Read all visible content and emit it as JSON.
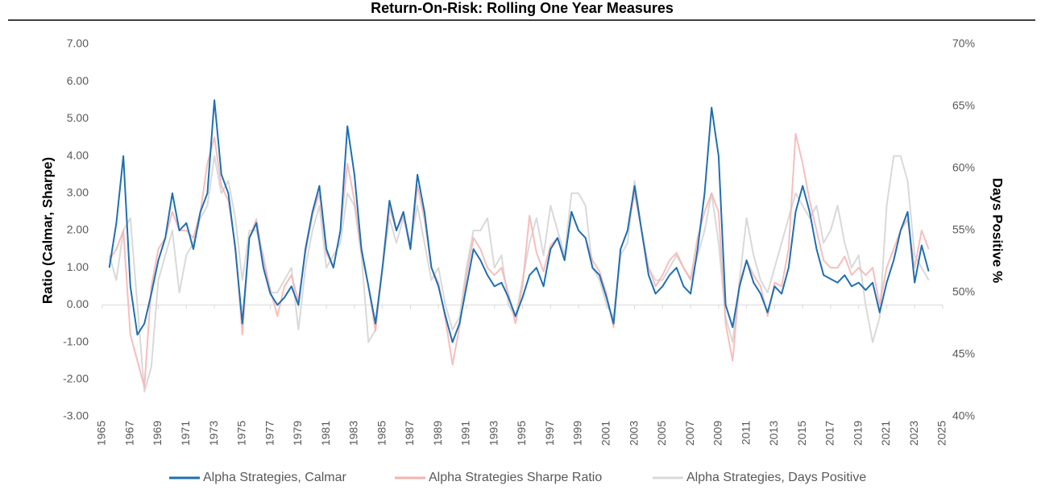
{
  "chart_data": {
    "type": "line",
    "title": "Return-On-Risk: Rolling One Year Measures",
    "y_label": "Ratio (Calmar, Sharpe)",
    "y2_label": "Days Positive %",
    "x": [
      1965.5,
      1966,
      1966.5,
      1967,
      1967.5,
      1968,
      1968.5,
      1969,
      1969.5,
      1970,
      1970.5,
      1971,
      1971.5,
      1972,
      1972.5,
      1973,
      1973.5,
      1974,
      1974.5,
      1975,
      1975.5,
      1976,
      1976.5,
      1977,
      1977.5,
      1978,
      1978.5,
      1979,
      1979.5,
      1980,
      1980.5,
      1981,
      1981.5,
      1982,
      1982.5,
      1983,
      1983.5,
      1984,
      1984.5,
      1985,
      1985.5,
      1986,
      1986.5,
      1987,
      1987.5,
      1988,
      1988.5,
      1989,
      1989.5,
      1990,
      1990.5,
      1991,
      1991.5,
      1992,
      1992.5,
      1993,
      1993.5,
      1994,
      1994.5,
      1995,
      1995.5,
      1996,
      1996.5,
      1997,
      1997.5,
      1998,
      1998.5,
      1999,
      1999.5,
      2000,
      2000.5,
      2001,
      2001.5,
      2002,
      2002.5,
      2003,
      2003.5,
      2004,
      2004.5,
      2005,
      2005.5,
      2006,
      2006.5,
      2007,
      2007.5,
      2008,
      2008.5,
      2009,
      2009.5,
      2010,
      2010.5,
      2011,
      2011.5,
      2012,
      2012.5,
      2013,
      2013.5,
      2014,
      2014.5,
      2015,
      2015.5,
      2016,
      2016.5,
      2017,
      2017.5,
      2018,
      2018.5,
      2019,
      2019.5,
      2020,
      2020.5,
      2021,
      2021.5,
      2022,
      2022.5,
      2023,
      2023.5,
      2024
    ],
    "series": [
      {
        "name": "Alpha Strategies, Calmar",
        "color": "#1f6fb2",
        "axis": "y",
        "values": [
          1.0,
          2.2,
          4.0,
          0.5,
          -0.8,
          -0.5,
          0.3,
          1.2,
          1.8,
          3.0,
          2.0,
          2.2,
          1.5,
          2.5,
          3.0,
          5.5,
          3.5,
          3.0,
          1.5,
          -0.5,
          1.8,
          2.2,
          1.0,
          0.3,
          0.0,
          0.2,
          0.5,
          0.0,
          1.5,
          2.5,
          3.2,
          1.5,
          1.0,
          2.0,
          4.8,
          3.5,
          1.5,
          0.5,
          -0.5,
          1.0,
          2.8,
          2.0,
          2.5,
          1.5,
          3.5,
          2.5,
          1.0,
          0.5,
          -0.3,
          -1.0,
          -0.5,
          0.5,
          1.5,
          1.2,
          0.8,
          0.5,
          0.6,
          0.2,
          -0.3,
          0.2,
          0.8,
          1.0,
          0.5,
          1.5,
          1.8,
          1.2,
          2.5,
          2.0,
          1.8,
          1.0,
          0.8,
          0.2,
          -0.5,
          1.5,
          2.0,
          3.2,
          2.0,
          0.8,
          0.3,
          0.5,
          0.8,
          1.0,
          0.5,
          0.3,
          1.5,
          3.0,
          5.3,
          4.0,
          0.0,
          -0.6,
          0.5,
          1.2,
          0.6,
          0.3,
          -0.2,
          0.5,
          0.3,
          1.0,
          2.5,
          3.2,
          2.5,
          1.5,
          0.8,
          0.7,
          0.6,
          0.8,
          0.5,
          0.6,
          0.4,
          0.6,
          -0.2,
          0.6,
          1.2,
          2.0,
          2.5,
          0.6,
          1.6,
          0.9
        ]
      },
      {
        "name": "Alpha Strategies Sharpe Ratio",
        "color": "#f4b3b1",
        "axis": "y",
        "values": [
          1.2,
          1.5,
          2.0,
          -0.8,
          -1.5,
          -2.2,
          0.5,
          1.5,
          1.8,
          2.5,
          2.0,
          2.0,
          1.8,
          2.5,
          3.8,
          4.5,
          3.2,
          2.8,
          1.6,
          -0.8,
          1.8,
          2.3,
          1.2,
          0.4,
          -0.3,
          0.5,
          0.8,
          0.1,
          1.4,
          2.4,
          3.0,
          1.4,
          1.0,
          2.0,
          3.8,
          2.8,
          1.4,
          0.5,
          -0.7,
          1.0,
          2.6,
          2.0,
          2.4,
          1.5,
          3.2,
          2.3,
          1.0,
          0.6,
          -0.4,
          -1.6,
          -0.6,
          0.8,
          1.8,
          1.5,
          1.0,
          0.8,
          1.0,
          0.3,
          -0.5,
          0.5,
          2.4,
          1.4,
          0.9,
          1.6,
          1.8,
          1.2,
          2.5,
          2.0,
          1.8,
          1.2,
          0.9,
          0.3,
          -0.6,
          1.5,
          2.0,
          3.0,
          2.0,
          1.0,
          0.5,
          0.8,
          1.2,
          1.4,
          1.0,
          0.7,
          1.8,
          2.5,
          3.0,
          2.5,
          -0.5,
          -1.5,
          0.6,
          1.2,
          0.8,
          0.5,
          -0.3,
          0.6,
          0.5,
          1.5,
          4.6,
          3.8,
          2.8,
          2.0,
          1.2,
          1.0,
          1.0,
          1.3,
          0.8,
          1.0,
          0.8,
          1.0,
          0.0,
          1.0,
          1.5,
          2.0,
          2.3,
          1.0,
          2.0,
          1.5
        ]
      },
      {
        "name": "Alpha Strategies, Days Positive",
        "color": "#d9d9d9",
        "axis": "y2",
        "values": [
          53,
          51,
          55,
          56,
          49,
          42,
          44,
          51,
          53,
          55,
          50,
          53,
          54,
          56,
          57,
          61,
          58,
          59,
          56,
          51,
          55,
          55,
          53,
          50,
          50,
          51,
          52,
          47,
          52,
          55,
          57,
          52,
          53,
          54,
          58,
          57,
          53,
          46,
          47,
          52,
          56,
          54,
          56,
          54,
          57,
          54,
          51,
          52,
          49,
          47,
          48,
          52,
          55,
          55,
          56,
          52,
          53,
          49,
          48,
          51,
          54,
          56,
          53,
          57,
          55,
          53,
          58,
          58,
          57,
          52,
          51,
          49,
          48,
          53,
          54,
          59,
          55,
          52,
          51,
          51,
          52,
          53,
          52,
          51,
          53,
          55,
          58,
          54,
          48,
          46,
          51,
          56,
          53,
          51,
          50,
          52,
          54,
          56,
          58,
          57,
          56,
          57,
          54,
          55,
          57,
          54,
          52,
          53,
          49,
          46,
          48,
          57,
          61,
          61,
          59,
          53,
          52,
          51
        ]
      }
    ],
    "xlim": [
      1965,
      2025
    ],
    "xticks": [
      1965,
      1967,
      1969,
      1971,
      1973,
      1975,
      1977,
      1979,
      1981,
      1983,
      1985,
      1987,
      1989,
      1991,
      1993,
      1995,
      1997,
      1999,
      2001,
      2003,
      2005,
      2007,
      2009,
      2011,
      2013,
      2015,
      2017,
      2019,
      2021,
      2023,
      2025
    ],
    "ylim": [
      -3,
      7
    ],
    "yticks": [
      {
        "value": -3,
        "label": "-3.00"
      },
      {
        "value": -2,
        "label": "-2.00"
      },
      {
        "value": -1,
        "label": "-1.00"
      },
      {
        "value": 0,
        "label": "0.00"
      },
      {
        "value": 1,
        "label": "1.00"
      },
      {
        "value": 2,
        "label": "2.00"
      },
      {
        "value": 3,
        "label": "3.00"
      },
      {
        "value": 4,
        "label": "4.00"
      },
      {
        "value": 5,
        "label": "5.00"
      },
      {
        "value": 6,
        "label": "6.00"
      },
      {
        "value": 7,
        "label": "7.00"
      }
    ],
    "y2lim": [
      40,
      70
    ],
    "y2ticks": [
      {
        "value": 40,
        "label": "40%"
      },
      {
        "value": 45,
        "label": "45%"
      },
      {
        "value": 50,
        "label": "50%"
      },
      {
        "value": 55,
        "label": "55%"
      },
      {
        "value": 60,
        "label": "60%"
      },
      {
        "value": 65,
        "label": "65%"
      },
      {
        "value": 70,
        "label": "70%"
      }
    ],
    "legend": "bottom"
  }
}
